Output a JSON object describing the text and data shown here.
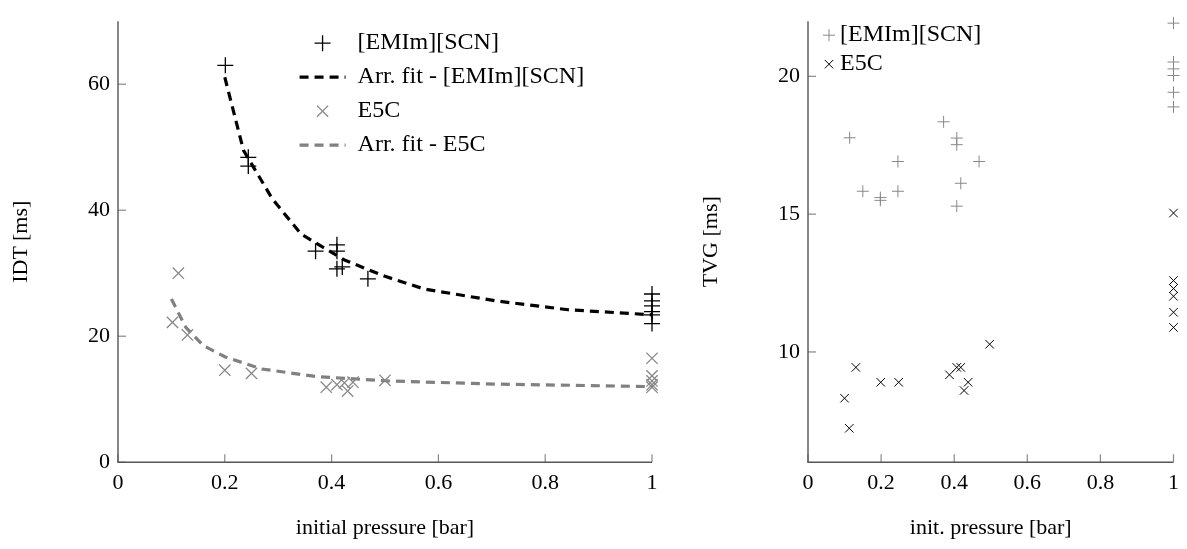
{
  "chart_data": [
    {
      "type": "scatter",
      "xlabel": "initial pressure [bar]",
      "ylabel": "IDT [ms]",
      "xlim": [
        0,
        1
      ],
      "xticks": [
        0,
        0.2,
        0.4,
        0.6,
        0.8,
        1
      ],
      "ylim": [
        0,
        70
      ],
      "yticks": [
        0,
        20,
        40,
        60
      ],
      "grid": false,
      "legend": "top right",
      "series": [
        {
          "name": "[EMIm][SCN]",
          "marker": "cross",
          "color": "#000000",
          "x": [
            0.201,
            0.244,
            0.244,
            0.37,
            0.41,
            0.41,
            0.41,
            0.42,
            0.468,
            1,
            1,
            1,
            1,
            1,
            1
          ],
          "values": [
            63.0,
            48.4,
            47.0,
            33.5,
            34.5,
            33.5,
            30.7,
            31.0,
            29.1,
            26.7,
            25.6,
            24.8,
            23.9,
            23.4,
            22.0
          ]
        },
        {
          "name": "Arr. fit - [EMIm][SCN]",
          "type": "line",
          "marker": "none",
          "line_style": "dashed",
          "color": "#000000",
          "x": [
            0.2,
            0.235,
            0.289,
            0.343,
            0.424,
            0.5,
            0.573,
            0.708,
            0.843,
            1
          ],
          "values": [
            61.1,
            49.5,
            41.8,
            36.2,
            32.1,
            29.5,
            27.5,
            25.6,
            24.2,
            23.4
          ]
        },
        {
          "name": "E5C",
          "marker": "x",
          "color": "#888888",
          "x": [
            0.113,
            0.102,
            0.13,
            0.2,
            0.25,
            0.39,
            0.41,
            0.424,
            0.43,
            0.44,
            0.5,
            1,
            1,
            1,
            1,
            1
          ],
          "values": [
            30.0,
            22.2,
            20.2,
            14.6,
            14.1,
            11.9,
            12.3,
            12.6,
            11.3,
            12.7,
            13.0,
            16.5,
            13.7,
            12.9,
            12.3,
            11.9
          ]
        },
        {
          "name": "Arr. fit - E5C",
          "type": "line",
          "marker": "none",
          "line_style": "dashed",
          "color": "#808080",
          "x": [
            0.1,
            0.127,
            0.16,
            0.201,
            0.269,
            0.37,
            0.505,
            0.708,
            1
          ],
          "values": [
            25.9,
            21.4,
            18.5,
            16.7,
            14.8,
            13.6,
            12.9,
            12.4,
            12.0
          ]
        }
      ]
    },
    {
      "type": "scatter",
      "xlabel": "init. pressure [bar]",
      "ylabel": "TVG [ms]",
      "xlim": [
        0,
        1
      ],
      "xticks": [
        0,
        0.2,
        0.4,
        0.6,
        0.8,
        1
      ],
      "ylim": [
        6,
        22
      ],
      "yticks": [
        10,
        15,
        20
      ],
      "grid": false,
      "legend": "top left",
      "series": [
        {
          "name": "[EMIm][SCN]",
          "marker": "cross",
          "color": "#888888",
          "x": [
            0.114,
            0.15,
            0.198,
            0.198,
            0.246,
            0.246,
            0.371,
            0.407,
            0.407,
            0.418,
            0.407,
            0.468,
            1,
            1,
            1,
            1,
            1,
            1
          ],
          "values": [
            17.77,
            15.83,
            15.6,
            15.5,
            16.91,
            15.83,
            18.35,
            17.76,
            17.52,
            16.12,
            15.29,
            16.91,
            21.93,
            20.52,
            20.27,
            20.03,
            19.42,
            18.89
          ]
        },
        {
          "name": "E5C",
          "marker": "x",
          "color": "#000000",
          "x": [
            0.1,
            0.113,
            0.131,
            0.199,
            0.248,
            0.387,
            0.407,
            0.418,
            0.427,
            0.438,
            0.497,
            1,
            1,
            1,
            1,
            1,
            1
          ],
          "values": [
            8.32,
            7.23,
            9.44,
            8.9,
            8.9,
            9.17,
            9.44,
            9.44,
            8.6,
            8.9,
            10.28,
            15.04,
            12.59,
            12.3,
            12.02,
            11.44,
            10.89
          ]
        }
      ]
    }
  ]
}
